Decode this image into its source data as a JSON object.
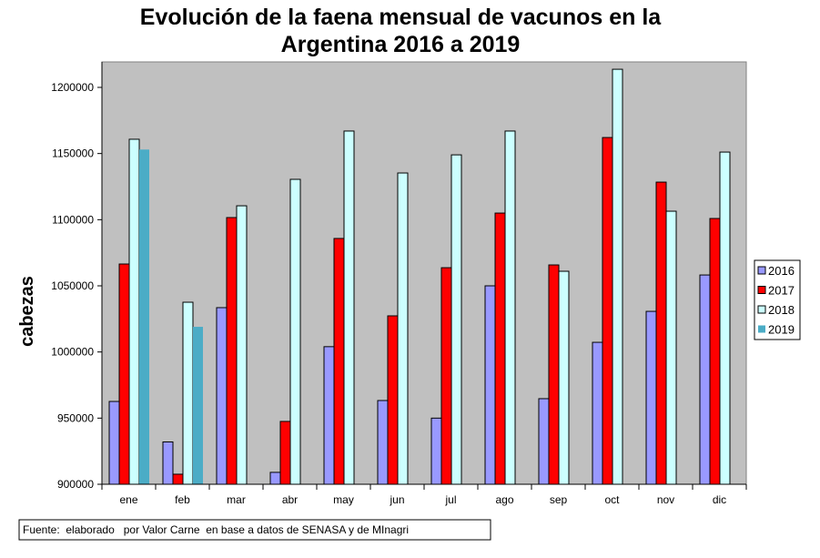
{
  "chart_data": {
    "type": "bar",
    "title_lines": [
      "Evolución de la faena mensual de vacunos en la",
      "Argentina 2016 a 2019"
    ],
    "xlabel": "",
    "ylabel": "cabezas",
    "ylim": [
      900000,
      1220000
    ],
    "yticks": [
      900000,
      950000,
      1000000,
      1050000,
      1100000,
      1150000,
      1200000
    ],
    "ytick_labels": [
      "900000",
      "950000",
      "1000000",
      "1050000",
      "1100000",
      "1150000",
      "1200000"
    ],
    "categories": [
      "ene",
      "feb",
      "mar",
      "abr",
      "may",
      "jun",
      "jul",
      "ago",
      "sep",
      "oct",
      "nov",
      "dic"
    ],
    "series": [
      {
        "name": "2016",
        "color": "#9999ff",
        "values": [
          962600,
          932000,
          1033500,
          909000,
          1004000,
          963300,
          950000,
          1050000,
          964700,
          1007300,
          1030700,
          1058200
        ]
      },
      {
        "name": "2017",
        "color": "#ff0000",
        "values": [
          1066500,
          907600,
          1101600,
          947500,
          1085800,
          1027300,
          1063700,
          1105000,
          1065800,
          1162100,
          1128400,
          1100900
        ]
      },
      {
        "name": "2018",
        "color": "#ccffff",
        "values": [
          1160800,
          1037600,
          1110500,
          1130500,
          1167000,
          1135300,
          1149000,
          1167000,
          1061000,
          1213700,
          1106400,
          1151100
        ]
      },
      {
        "name": "2019",
        "color": "#4bacc6",
        "values": [
          1153000,
          1019000,
          null,
          null,
          null,
          null,
          null,
          null,
          null,
          null,
          null,
          null
        ]
      }
    ],
    "grid": false,
    "plot_background": "#c0c0c0",
    "legend_position": "right",
    "source_note": "Fuente:  elaborado   por Valor Carne  en base a datos de SENASA y de MInagri"
  }
}
